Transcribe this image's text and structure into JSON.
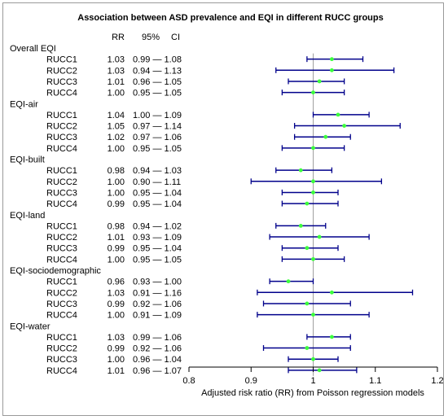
{
  "chart_data": {
    "type": "forest",
    "title": "Association between ASD prevalence and EQI in different RUCC groups",
    "xlabel": "Adjusted risk ratio (RR) from Poisson regression models",
    "xlim": [
      0.8,
      1.2
    ],
    "xticks": [
      "0.8",
      "0.9",
      "1",
      "1.1",
      "1.2"
    ],
    "reference_line": 1.0,
    "columns": {
      "rr": "RR",
      "ci_low": "95%",
      "ci_high": "CI"
    },
    "groups": [
      {
        "name": "Overall EQI",
        "rows": [
          {
            "label": "RUCC1",
            "rr_text": "1.03",
            "ci_text": "0.99 — 1.08",
            "rr": 1.03,
            "lo": 0.99,
            "hi": 1.08
          },
          {
            "label": "RUCC2",
            "rr_text": "1.03",
            "ci_text": "0.94 — 1.13",
            "rr": 1.03,
            "lo": 0.94,
            "hi": 1.13
          },
          {
            "label": "RUCC3",
            "rr_text": "1.01",
            "ci_text": "0.96 — 1.05",
            "rr": 1.01,
            "lo": 0.96,
            "hi": 1.05
          },
          {
            "label": "RUCC4",
            "rr_text": "1.00",
            "ci_text": "0.95 — 1.05",
            "rr": 1.0,
            "lo": 0.95,
            "hi": 1.05
          }
        ]
      },
      {
        "name": "EQI-air",
        "rows": [
          {
            "label": "RUCC1",
            "rr_text": "1.04",
            "ci_text": "1.00 — 1.09",
            "rr": 1.04,
            "lo": 1.0,
            "hi": 1.09
          },
          {
            "label": "RUCC2",
            "rr_text": "1.05",
            "ci_text": "0.97 — 1.14",
            "rr": 1.05,
            "lo": 0.97,
            "hi": 1.14
          },
          {
            "label": "RUCC3",
            "rr_text": "1.02",
            "ci_text": "0.97 — 1.06",
            "rr": 1.02,
            "lo": 0.97,
            "hi": 1.06
          },
          {
            "label": "RUCC4",
            "rr_text": "1.00",
            "ci_text": "0.95 — 1.05",
            "rr": 1.0,
            "lo": 0.95,
            "hi": 1.05
          }
        ]
      },
      {
        "name": "EQI-built",
        "rows": [
          {
            "label": "RUCC1",
            "rr_text": "0.98",
            "ci_text": "0.94 — 1.03",
            "rr": 0.98,
            "lo": 0.94,
            "hi": 1.03
          },
          {
            "label": "RUCC2",
            "rr_text": "1.00",
            "ci_text": "0.90 — 1.11",
            "rr": 1.0,
            "lo": 0.9,
            "hi": 1.11
          },
          {
            "label": "RUCC3",
            "rr_text": "1.00",
            "ci_text": "0.95 — 1.04",
            "rr": 1.0,
            "lo": 0.95,
            "hi": 1.04
          },
          {
            "label": "RUCC4",
            "rr_text": "0.99",
            "ci_text": "0.95 — 1.04",
            "rr": 0.99,
            "lo": 0.95,
            "hi": 1.04
          }
        ]
      },
      {
        "name": "EQI-land",
        "rows": [
          {
            "label": "RUCC1",
            "rr_text": "0.98",
            "ci_text": "0.94 — 1.02",
            "rr": 0.98,
            "lo": 0.94,
            "hi": 1.02
          },
          {
            "label": "RUCC2",
            "rr_text": "1.01",
            "ci_text": "0.93 — 1.09",
            "rr": 1.01,
            "lo": 0.93,
            "hi": 1.09
          },
          {
            "label": "RUCC3",
            "rr_text": "0.99",
            "ci_text": "0.95 — 1.04",
            "rr": 0.99,
            "lo": 0.95,
            "hi": 1.04
          },
          {
            "label": "RUCC4",
            "rr_text": "1.00",
            "ci_text": "0.95 — 1.05",
            "rr": 1.0,
            "lo": 0.95,
            "hi": 1.05
          }
        ]
      },
      {
        "name": "EQI-sociodemographic",
        "rows": [
          {
            "label": "RUCC1",
            "rr_text": "0.96",
            "ci_text": "0.93 — 1.00",
            "rr": 0.96,
            "lo": 0.93,
            "hi": 1.0
          },
          {
            "label": "RUCC2",
            "rr_text": "1.03",
            "ci_text": "0.91 — 1.16",
            "rr": 1.03,
            "lo": 0.91,
            "hi": 1.16
          },
          {
            "label": "RUCC3",
            "rr_text": "0.99",
            "ci_text": "0.92 — 1.06",
            "rr": 0.99,
            "lo": 0.92,
            "hi": 1.06
          },
          {
            "label": "RUCC4",
            "rr_text": "1.00",
            "ci_text": "0.91 — 1.09",
            "rr": 1.0,
            "lo": 0.91,
            "hi": 1.09
          }
        ]
      },
      {
        "name": "EQI-water",
        "rows": [
          {
            "label": "RUCC1",
            "rr_text": "1.03",
            "ci_text": "0.99 — 1.06",
            "rr": 1.03,
            "lo": 0.99,
            "hi": 1.06
          },
          {
            "label": "RUCC2",
            "rr_text": "0.99",
            "ci_text": "0.92 — 1.06",
            "rr": 0.99,
            "lo": 0.92,
            "hi": 1.06
          },
          {
            "label": "RUCC3",
            "rr_text": "1.00",
            "ci_text": "0.96 — 1.04",
            "rr": 1.0,
            "lo": 0.96,
            "hi": 1.04
          },
          {
            "label": "RUCC4",
            "rr_text": "1.01",
            "ci_text": "0.96 — 1.07",
            "rr": 1.01,
            "lo": 0.96,
            "hi": 1.07
          }
        ]
      }
    ],
    "colors": {
      "ci_line": "#00008b",
      "point": "#3cff3c",
      "ref_line": "#a0a0a0"
    }
  }
}
